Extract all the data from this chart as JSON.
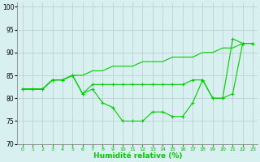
{
  "line1": [
    82,
    82,
    82,
    84,
    84,
    85,
    85,
    86,
    86,
    87,
    87,
    87,
    88,
    88,
    88,
    89,
    89,
    89,
    90,
    90,
    91,
    91,
    92,
    92
  ],
  "line2": [
    82,
    82,
    82,
    84,
    84,
    85,
    81,
    83,
    83,
    83,
    83,
    83,
    83,
    83,
    83,
    83,
    83,
    84,
    84,
    80,
    80,
    93,
    92,
    92
  ],
  "line3": [
    82,
    82,
    82,
    84,
    84,
    85,
    81,
    82,
    79,
    78,
    75,
    75,
    75,
    77,
    77,
    76,
    76,
    79,
    84,
    80,
    80,
    81,
    92,
    92
  ],
  "x": [
    0,
    1,
    2,
    3,
    4,
    5,
    6,
    7,
    8,
    9,
    10,
    11,
    12,
    13,
    14,
    15,
    16,
    17,
    18,
    19,
    20,
    21,
    22,
    23
  ],
  "xlim": [
    -0.5,
    23.5
  ],
  "ylim": [
    70,
    101
  ],
  "yticks": [
    70,
    75,
    80,
    85,
    90,
    95,
    100
  ],
  "xtick_labels": [
    "0",
    "1",
    "2",
    "3",
    "4",
    "5",
    "6",
    "7",
    "8",
    "9",
    "10",
    "11",
    "12",
    "13",
    "14",
    "15",
    "16",
    "17",
    "18",
    "19",
    "20",
    "21",
    "22",
    "23"
  ],
  "xlabel": "Humidité relative (%)",
  "line_color": "#00cc00",
  "bg_color": "#d8f0f0",
  "grid_color": "#bbcccc",
  "marker": "+",
  "markersize": 3,
  "linewidth": 0.8,
  "figwidth": 3.2,
  "figheight": 2.0,
  "dpi": 100
}
